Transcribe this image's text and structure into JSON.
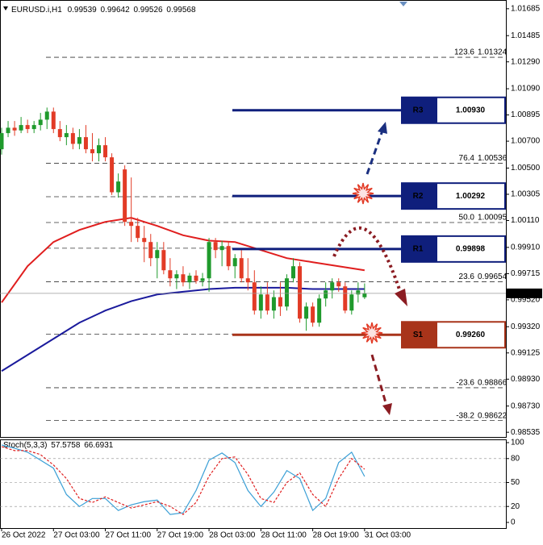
{
  "chart_data": {
    "type": "candlestick",
    "title": "EURUSD.i,H1",
    "open": [
      1.0064,
      1.0076,
      1.008,
      1.0078,
      1.0082,
      1.0079,
      1.0082,
      1.0086,
      1.0092,
      1.0079,
      1.0073,
      1.0076,
      1.0068,
      1.0073,
      1.0064,
      1.0061,
      1.0067,
      1.0058,
      1.0032,
      1.0049,
      1.001,
      1.0007,
      0.9998,
      0.9995,
      0.9983,
      0.9989,
      0.9974,
      0.9968,
      0.9971,
      0.9965,
      0.997,
      0.9966,
      0.9968,
      0.9995,
      0.9989,
      0.9992,
      0.9977,
      0.9983,
      0.9968,
      0.9965,
      0.9944,
      0.9956,
      0.9944,
      0.9954,
      0.9947,
      0.9968,
      0.9977,
      0.9938,
      0.9947,
      0.9935,
      0.9953,
      0.9959,
      0.9965,
      0.9962,
      0.9944,
      0.9956,
      0.99539
    ],
    "high": [
      1.008,
      1.0085,
      1.0085,
      1.0088,
      1.0086,
      1.0085,
      1.0091,
      1.0095,
      1.0095,
      1.0085,
      1.0082,
      1.008,
      1.0079,
      1.0082,
      1.0076,
      1.0072,
      1.0073,
      1.0061,
      1.0046,
      1.0052,
      1.0043,
      1.0013,
      1.0007,
      1.0001,
      0.9995,
      0.9995,
      0.9983,
      0.9974,
      0.9977,
      0.9972,
      0.9974,
      0.9972,
      0.9998,
      0.9998,
      0.9996,
      0.9995,
      0.9986,
      0.9989,
      0.9983,
      0.9974,
      0.9962,
      0.9965,
      0.9959,
      0.9965,
      0.9971,
      0.9983,
      0.998,
      0.995,
      0.995,
      0.9956,
      0.9965,
      0.9968,
      0.9968,
      0.9965,
      0.9959,
      0.9965,
      0.99642
    ],
    "low": [
      1.006,
      1.0073,
      1.0074,
      1.0076,
      1.0076,
      1.0076,
      1.0078,
      1.0079,
      1.0076,
      1.007,
      1.0067,
      1.0064,
      1.0064,
      1.0061,
      1.0055,
      1.0055,
      1.0055,
      1.003,
      1.0028,
      1.0007,
      0.9995,
      0.9995,
      0.998,
      0.9977,
      0.9968,
      0.9971,
      0.9962,
      0.996,
      0.9962,
      0.996,
      0.9964,
      0.9962,
      0.9958,
      0.9983,
      0.9977,
      0.9974,
      0.9968,
      0.9965,
      0.9959,
      0.9941,
      0.9938,
      0.9941,
      0.9938,
      0.994,
      0.9944,
      0.9965,
      0.9935,
      0.9929,
      0.9932,
      0.9932,
      0.9947,
      0.9953,
      0.9958,
      0.9942,
      0.9941,
      0.995,
      0.99526
    ],
    "close": [
      1.0076,
      1.008,
      1.0078,
      1.0082,
      1.0079,
      1.0082,
      1.0086,
      1.0092,
      1.0079,
      1.0073,
      1.0076,
      1.0068,
      1.0073,
      1.0064,
      1.0061,
      1.0067,
      1.0058,
      1.0032,
      1.004,
      1.001,
      1.0007,
      0.9998,
      0.9995,
      0.9983,
      0.9989,
      0.9974,
      0.9968,
      0.9971,
      0.9965,
      0.997,
      0.9966,
      0.9968,
      0.9995,
      0.9989,
      0.9992,
      0.9977,
      0.9983,
      0.9968,
      0.9965,
      0.9944,
      0.9956,
      0.9944,
      0.9954,
      0.9947,
      0.9968,
      0.9977,
      0.9938,
      0.9947,
      0.9935,
      0.9953,
      0.9959,
      0.9965,
      0.9962,
      0.9944,
      0.9956,
      0.9959,
      0.99568
    ],
    "up_color": "#1f9a2c",
    "down_color": "#e23b26",
    "xlim": [
      -0.25,
      77.8
    ],
    "xticks": [
      {
        "value": 0,
        "label": "26 Oct 2022"
      },
      {
        "value": 8,
        "label": "27 Oct 03:00"
      },
      {
        "value": 16,
        "label": "27 Oct 11:00"
      },
      {
        "value": 24,
        "label": "27 Oct 19:00"
      },
      {
        "value": 32,
        "label": "28 Oct 03:00"
      },
      {
        "value": 40,
        "label": "28 Oct 11:00"
      },
      {
        "value": 48,
        "label": "28 Oct 19:00"
      },
      {
        "value": 56,
        "label": "31 Oct 03:00"
      }
    ],
    "ylim": [
      0.985,
      1.0175
    ],
    "yticks": [
      1.01685,
      1.01485,
      {
        "value": 1.0129,
        "label": "1.01290"
      },
      {
        "value": 1.0109,
        "label": "1.01090"
      },
      1.00895,
      {
        "value": 1.007,
        "label": "1.00700"
      },
      {
        "value": 1.005,
        "label": "1.00500"
      },
      1.00305,
      {
        "value": 1.0011,
        "label": "1.00110"
      },
      {
        "value": 0.9991,
        "label": "0.99910"
      },
      0.99715,
      {
        "value": 0.9952,
        "label": "0.99520"
      },
      {
        "value": 0.9932,
        "label": "0.99320"
      },
      0.99125,
      {
        "value": 0.9893,
        "label": "0.98930"
      },
      {
        "value": 0.9873,
        "label": "0.98730"
      },
      0.98535
    ],
    "moving_averages": [
      {
        "color": "#e01e1e",
        "x": [
          0,
          4,
          8,
          12,
          16,
          20,
          24,
          28,
          32,
          36,
          40,
          44,
          48,
          52,
          56
        ],
        "values": [
          0.995,
          0.9977,
          0.9995,
          1.0004,
          1.001,
          1.0013,
          1.0007,
          1.0,
          0.9996,
          0.9995,
          0.9989,
          0.9983,
          0.998,
          0.9977,
          0.9974
        ]
      },
      {
        "color": "#1a1a9c",
        "x": [
          0,
          4,
          8,
          12,
          16,
          20,
          24,
          28,
          32,
          36,
          40,
          44,
          48,
          52,
          56
        ],
        "values": [
          0.9899,
          0.9911,
          0.9923,
          0.9935,
          0.9944,
          0.9951,
          0.9956,
          0.9958,
          0.996,
          0.9961,
          0.9961,
          0.9961,
          0.996,
          0.996,
          0.996
        ]
      }
    ],
    "fibonacci": [
      {
        "label": "123.6",
        "price": 1.01324
      },
      {
        "label": "76.4",
        "price": 1.00536
      },
      {
        "price": 1.00287
      },
      {
        "label": "50.0",
        "price": 1.00095
      },
      {
        "price": 0.99904
      },
      {
        "label": "23.6",
        "price": 0.99654
      },
      {
        "price": 0.99264
      },
      {
        "label": "-23.6",
        "price": 0.98866
      },
      {
        "label": "-38.2",
        "price": 0.98622
      }
    ],
    "levels": [
      {
        "name": "R3",
        "value": 1.0093,
        "label": "1.00930",
        "color": "#0f1f7c"
      },
      {
        "name": "R2",
        "value": 1.00292,
        "label": "1.00292",
        "color": "#0f1f7c"
      },
      {
        "name": "R1",
        "value": 0.99898,
        "label": "0.99898",
        "color": "#0f1f7c"
      },
      {
        "name": "S1",
        "value": 0.9926,
        "label": "0.99260",
        "color": "#a8341a"
      }
    ],
    "stochastic": {
      "title": "Stoch(5,3,3)",
      "ylim": [
        0,
        100
      ],
      "yticks": [
        100,
        80,
        50,
        20,
        0
      ],
      "x": [
        0,
        2,
        4,
        6,
        8,
        10,
        12,
        14,
        16,
        18,
        20,
        22,
        24,
        26,
        28,
        30,
        32,
        34,
        36,
        38,
        40,
        42,
        44,
        46,
        48,
        50,
        52,
        54,
        56
      ],
      "series": [
        {
          "color": "#3a9fd6",
          "values": [
            97,
            93,
            88,
            78,
            68,
            35,
            20,
            30,
            30,
            15,
            22,
            26,
            28,
            10,
            12,
            40,
            78,
            87,
            75,
            40,
            20,
            38,
            65,
            55,
            15,
            30,
            75,
            88,
            57.5758
          ]
        },
        {
          "color": "#e01e1e",
          "values": [
            95,
            90,
            90,
            85,
            72,
            55,
            30,
            25,
            32,
            25,
            18,
            22,
            26,
            20,
            10,
            25,
            58,
            80,
            82,
            60,
            30,
            25,
            50,
            62,
            35,
            20,
            55,
            80,
            66.6931
          ]
        }
      ]
    }
  }
}
